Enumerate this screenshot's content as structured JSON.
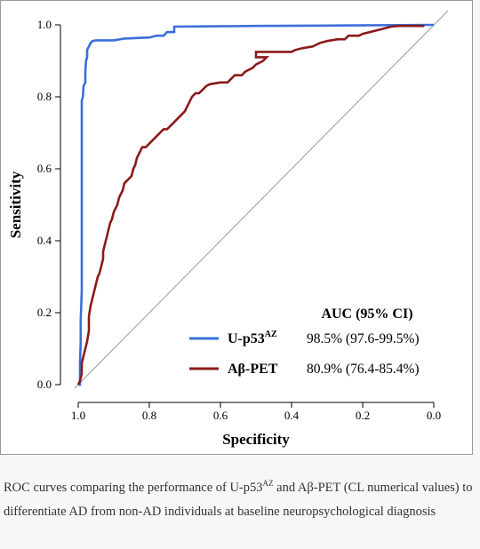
{
  "chart_data": {
    "type": "line",
    "title": "",
    "xlabel": "Specificity",
    "ylabel": "Sensitivity",
    "xlim": [
      1.0,
      0.0
    ],
    "ylim": [
      0.0,
      1.0
    ],
    "x_ticks": [
      "1.0",
      "0.8",
      "0.6",
      "0.4",
      "0.2",
      "0.0"
    ],
    "y_ticks": [
      "0.0",
      "0.2",
      "0.4",
      "0.6",
      "0.8",
      "1.0"
    ],
    "grid": false,
    "diagonal_reference": true,
    "legend": {
      "header": "AUC (95% CI)",
      "position": "bottom-right"
    },
    "series": [
      {
        "name": "U-p53",
        "name_sup": "AZ",
        "auc": "98.5% (97.6-99.5%)",
        "color": "#3a6fd8",
        "points": [
          [
            1.0,
            0.0
          ],
          [
            0.995,
            0.0
          ],
          [
            0.995,
            0.06
          ],
          [
            0.993,
            0.12
          ],
          [
            0.993,
            0.18
          ],
          [
            0.99,
            0.26
          ],
          [
            0.99,
            0.45
          ],
          [
            0.99,
            0.6
          ],
          [
            0.99,
            0.79
          ],
          [
            0.987,
            0.8
          ],
          [
            0.985,
            0.83
          ],
          [
            0.98,
            0.84
          ],
          [
            0.98,
            0.87
          ],
          [
            0.978,
            0.9
          ],
          [
            0.975,
            0.91
          ],
          [
            0.975,
            0.93
          ],
          [
            0.97,
            0.94
          ],
          [
            0.965,
            0.95
          ],
          [
            0.96,
            0.955
          ],
          [
            0.95,
            0.957
          ],
          [
            0.9,
            0.957
          ],
          [
            0.87,
            0.962
          ],
          [
            0.8,
            0.965
          ],
          [
            0.78,
            0.97
          ],
          [
            0.76,
            0.97
          ],
          [
            0.75,
            0.98
          ],
          [
            0.73,
            0.98
          ],
          [
            0.73,
            0.995
          ],
          [
            0.5,
            0.997
          ],
          [
            0.3,
            0.998
          ],
          [
            0.0,
            1.0
          ]
        ]
      },
      {
        "name": "Aβ-PET",
        "name_sup": "",
        "auc": "80.9% (76.4-85.4%)",
        "color": "#8b1a1a",
        "points": [
          [
            1.0,
            0.0
          ],
          [
            0.995,
            0.01
          ],
          [
            0.99,
            0.03
          ],
          [
            0.99,
            0.06
          ],
          [
            0.985,
            0.08
          ],
          [
            0.98,
            0.1
          ],
          [
            0.975,
            0.12
          ],
          [
            0.97,
            0.15
          ],
          [
            0.97,
            0.19
          ],
          [
            0.965,
            0.22
          ],
          [
            0.96,
            0.24
          ],
          [
            0.955,
            0.26
          ],
          [
            0.95,
            0.28
          ],
          [
            0.945,
            0.3
          ],
          [
            0.94,
            0.31
          ],
          [
            0.935,
            0.33
          ],
          [
            0.93,
            0.35
          ],
          [
            0.93,
            0.37
          ],
          [
            0.925,
            0.39
          ],
          [
            0.92,
            0.41
          ],
          [
            0.915,
            0.43
          ],
          [
            0.91,
            0.45
          ],
          [
            0.905,
            0.46
          ],
          [
            0.9,
            0.48
          ],
          [
            0.895,
            0.49
          ],
          [
            0.89,
            0.5
          ],
          [
            0.885,
            0.52
          ],
          [
            0.88,
            0.53
          ],
          [
            0.875,
            0.54
          ],
          [
            0.87,
            0.56
          ],
          [
            0.86,
            0.57
          ],
          [
            0.85,
            0.58
          ],
          [
            0.845,
            0.6
          ],
          [
            0.84,
            0.61
          ],
          [
            0.835,
            0.63
          ],
          [
            0.83,
            0.64
          ],
          [
            0.825,
            0.65
          ],
          [
            0.82,
            0.66
          ],
          [
            0.81,
            0.66
          ],
          [
            0.8,
            0.67
          ],
          [
            0.79,
            0.68
          ],
          [
            0.78,
            0.69
          ],
          [
            0.77,
            0.7
          ],
          [
            0.76,
            0.71
          ],
          [
            0.75,
            0.71
          ],
          [
            0.74,
            0.72
          ],
          [
            0.73,
            0.73
          ],
          [
            0.72,
            0.74
          ],
          [
            0.71,
            0.75
          ],
          [
            0.7,
            0.76
          ],
          [
            0.695,
            0.77
          ],
          [
            0.69,
            0.78
          ],
          [
            0.685,
            0.79
          ],
          [
            0.68,
            0.8
          ],
          [
            0.67,
            0.81
          ],
          [
            0.66,
            0.81
          ],
          [
            0.65,
            0.82
          ],
          [
            0.64,
            0.83
          ],
          [
            0.63,
            0.835
          ],
          [
            0.6,
            0.84
          ],
          [
            0.58,
            0.84
          ],
          [
            0.57,
            0.85
          ],
          [
            0.56,
            0.86
          ],
          [
            0.54,
            0.86
          ],
          [
            0.53,
            0.87
          ],
          [
            0.51,
            0.88
          ],
          [
            0.5,
            0.89
          ],
          [
            0.48,
            0.9
          ],
          [
            0.47,
            0.91
          ],
          [
            0.5,
            0.91
          ],
          [
            0.5,
            0.925
          ],
          [
            0.4,
            0.925
          ],
          [
            0.39,
            0.93
          ],
          [
            0.37,
            0.935
          ],
          [
            0.34,
            0.94
          ],
          [
            0.32,
            0.95
          ],
          [
            0.3,
            0.955
          ],
          [
            0.27,
            0.96
          ],
          [
            0.25,
            0.96
          ],
          [
            0.24,
            0.97
          ],
          [
            0.21,
            0.97
          ],
          [
            0.2,
            0.975
          ],
          [
            0.18,
            0.98
          ],
          [
            0.16,
            0.985
          ],
          [
            0.14,
            0.99
          ],
          [
            0.12,
            0.995
          ],
          [
            0.1,
            0.997
          ],
          [
            0.05,
            0.997
          ],
          [
            0.03,
            0.997
          ],
          [
            0.03,
            1.0
          ]
        ]
      }
    ]
  },
  "caption": {
    "part1": "ROC curves comparing the performance of U-p53",
    "sup": "AZ",
    "part2": " and Aβ-PET (CL numerical values) to differentiate AD from non-AD individuals at baseline neuropsychological diagnosis"
  }
}
